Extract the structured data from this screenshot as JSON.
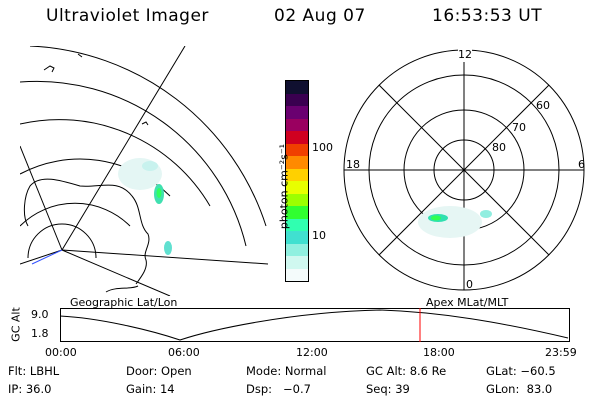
{
  "header": {
    "instrument": "Ultraviolet Imager",
    "date": "02 Aug 07",
    "time": "16:53:53 UT"
  },
  "geo_panel": {
    "caption": "Geographic Lat/Lon"
  },
  "colorbar": {
    "label": "photon cm⁻²s⁻¹",
    "ticks": [
      "100",
      "10"
    ],
    "colors": [
      "#101030",
      "#3a0050",
      "#6a0070",
      "#9a0060",
      "#d00020",
      "#f04000",
      "#ff8a00",
      "#ffd000",
      "#e8ff00",
      "#9cff00",
      "#30ff30",
      "#30ffb0",
      "#40e0d0",
      "#90f0e0",
      "#d0f8f0",
      "#f4fbfb"
    ]
  },
  "polar_panel": {
    "caption": "Apex MLat/MLT",
    "mlt_labels": [
      "12",
      "18",
      "6",
      "0"
    ],
    "mlat_labels": [
      "60",
      "70",
      "80"
    ]
  },
  "altitude_plot": {
    "ylabel": "GC Alt",
    "yticks": [
      "9.0",
      "1.8"
    ],
    "xticks": [
      "00:00",
      "06:00",
      "12:00",
      "18:00",
      "23:59"
    ],
    "marker_color": "#ff0000"
  },
  "info": {
    "row1": [
      "Flt: LBHL",
      "Door: Open",
      "Mode: Normal",
      "GC Alt: 8.6 Re",
      "GLat: −60.5"
    ],
    "row2": [
      "IP: 36.0",
      "Gain: 14",
      "Dsp:   −0.7",
      "Seq: 39",
      "GLon:  83.0"
    ]
  }
}
